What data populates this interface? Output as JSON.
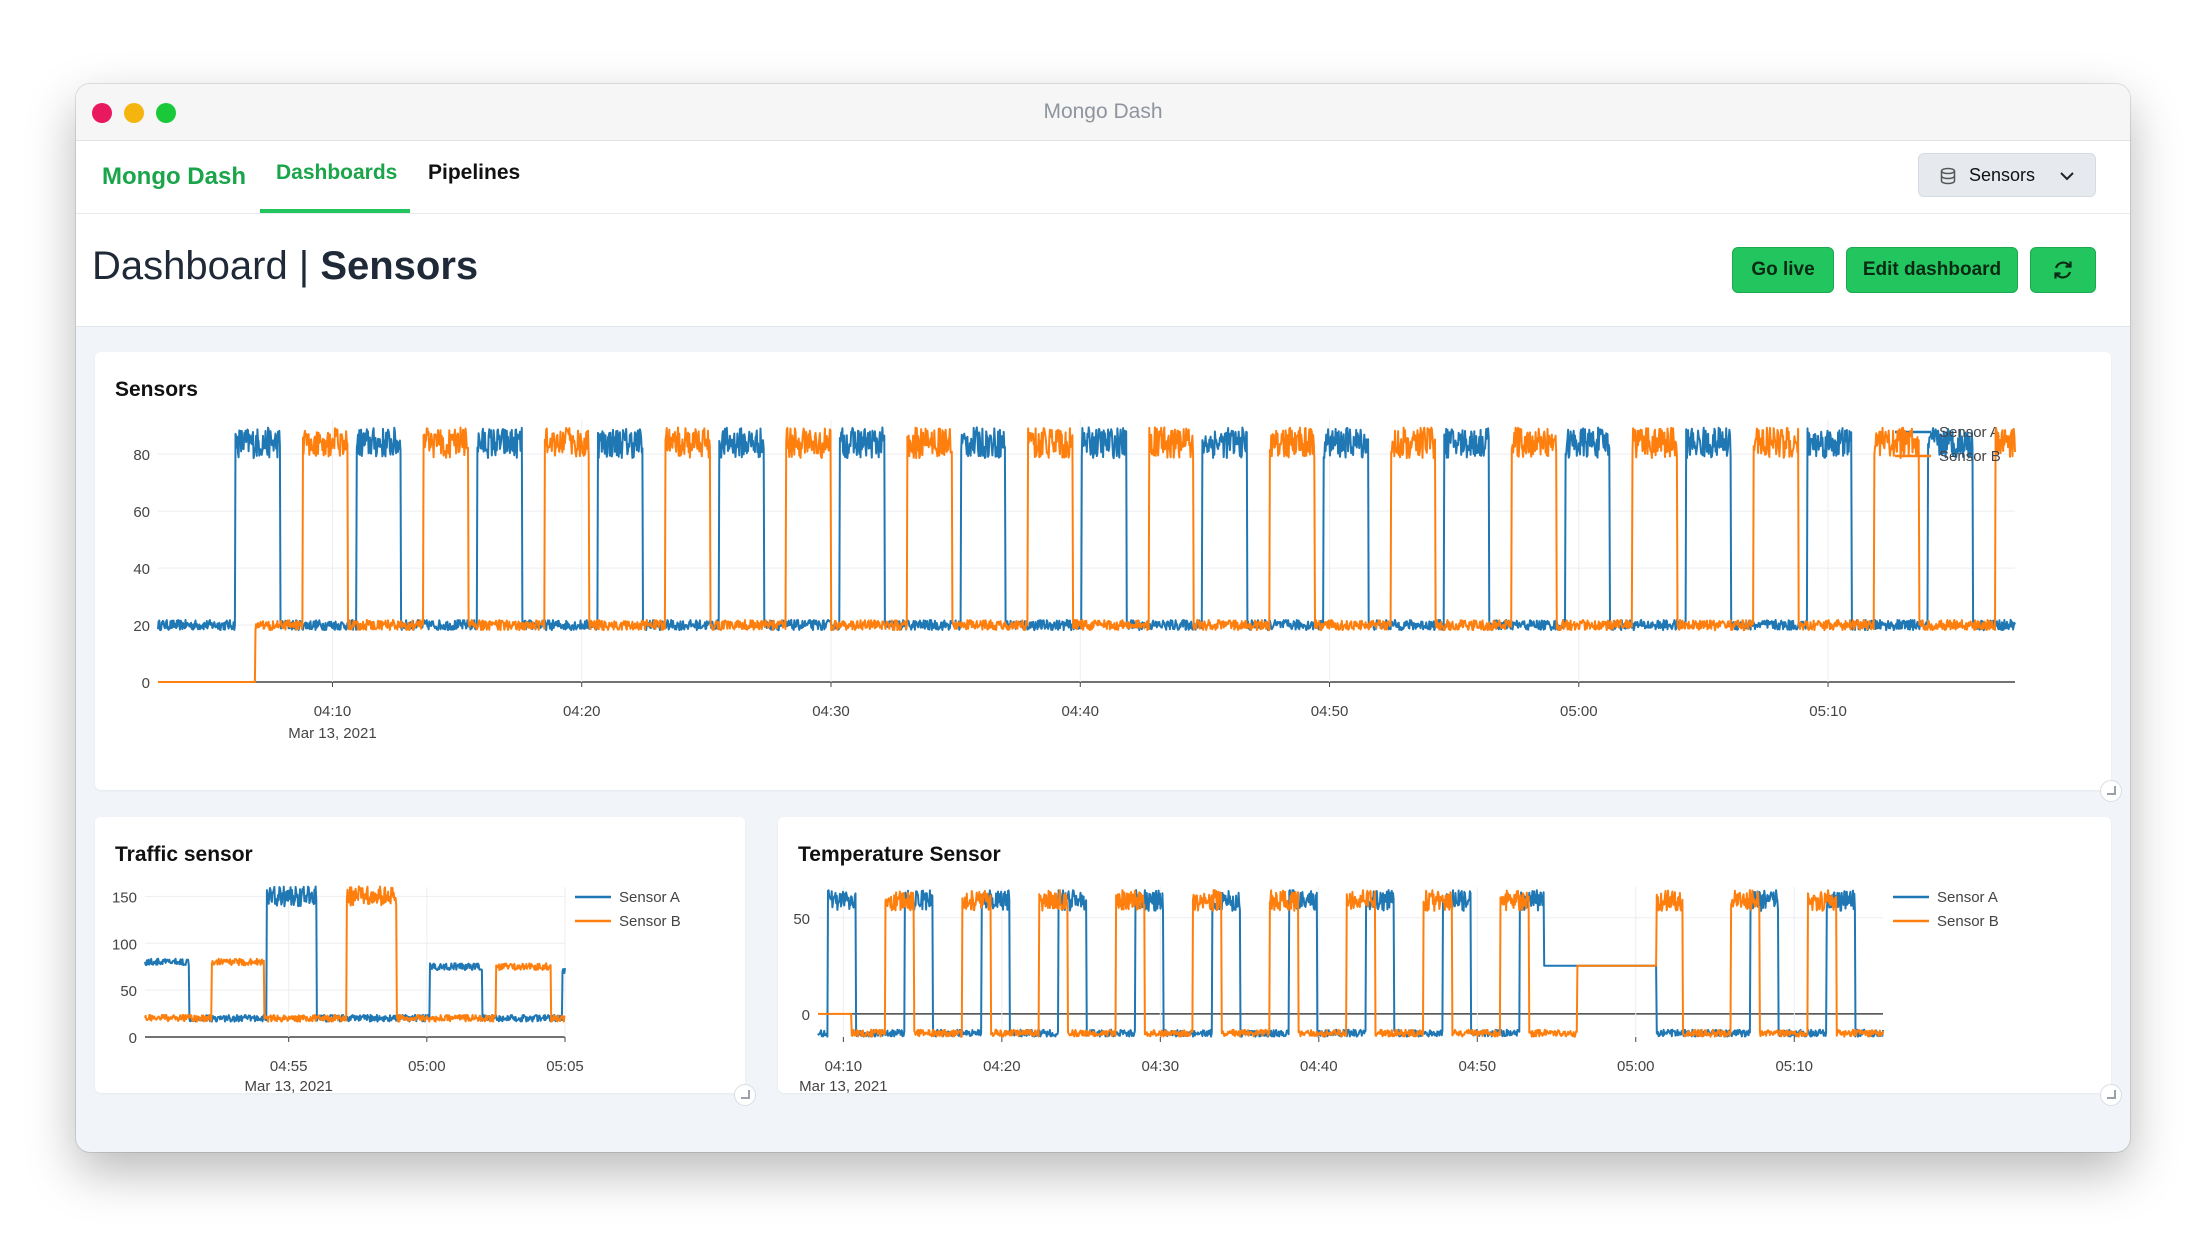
{
  "window": {
    "title": "Mongo Dash"
  },
  "nav": {
    "brand": "Mongo Dash",
    "tabs": [
      {
        "label": "Dashboards"
      },
      {
        "label": "Pipelines"
      }
    ],
    "database": {
      "label": "Sensors"
    }
  },
  "header": {
    "title_prefix": "Dashboard | ",
    "title_name": "Sensors",
    "go_live_label": "Go live",
    "edit_label": "Edit dashboard"
  },
  "colors": {
    "sensor_a": "#1f77b4",
    "sensor_b": "#ff7f0e",
    "accent": "#22c55e",
    "brand": "#1aa54b"
  },
  "icons": {
    "database": "database-icon",
    "chevron": "chevron-down-icon",
    "refresh": "refresh-icon",
    "resize": "resize-handle-icon"
  },
  "chart_data": [
    {
      "type": "line",
      "title": "Sensors",
      "x_ticks": [
        "04:10",
        "04:20",
        "04:30",
        "04:40",
        "04:50",
        "05:00",
        "05:10"
      ],
      "x_tick_minutes": [
        10,
        20,
        30,
        40,
        50,
        60,
        70
      ],
      "x_date": "Mar 13, 2021",
      "xlim_minutes": [
        3,
        77.5
      ],
      "y_ticks": [
        "0",
        "20",
        "40",
        "60",
        "80"
      ],
      "ylim": [
        0,
        92
      ],
      "legend": "right",
      "series": [
        {
          "name": "Sensor A",
          "color": "#1f77b4",
          "start_minute": 6.1,
          "pre_value": 20,
          "high": 84,
          "low": 20,
          "period_minutes": 4.85,
          "high_from": 0,
          "high_to": 1.8,
          "noise": 3
        },
        {
          "name": "Sensor B",
          "color": "#ff7f0e",
          "start_minute": 6.9,
          "pre_value": 0,
          "base": 20,
          "high": 84,
          "low": 20,
          "period_minutes": 4.85,
          "high_from": 1.9,
          "high_to": 3.7,
          "noise": 3
        }
      ]
    },
    {
      "type": "line",
      "title": "Traffic sensor",
      "x_ticks": [
        "04:55",
        "05:00",
        "05:05"
      ],
      "x_tick_minutes": [
        55,
        60,
        65
      ],
      "x_date": "Mar 13, 2021",
      "xlim_minutes": [
        49.8,
        65
      ],
      "y_ticks": [
        "0",
        "50",
        "100",
        "150"
      ],
      "ylim": [
        0,
        160
      ],
      "legend": "right",
      "series": [
        {
          "name": "Sensor A",
          "color": "#1f77b4",
          "segments": [
            [
              49.8,
              80
            ],
            [
              51.4,
              20
            ],
            [
              54.2,
              150
            ],
            [
              56.0,
              20
            ],
            [
              60.1,
              75
            ],
            [
              62.0,
              20
            ],
            [
              64.9,
              70
            ]
          ],
          "noise": 6
        },
        {
          "name": "Sensor B",
          "color": "#ff7f0e",
          "segments": [
            [
              49.8,
              20
            ],
            [
              52.2,
              80
            ],
            [
              54.1,
              20
            ],
            [
              57.1,
              150
            ],
            [
              58.9,
              20
            ],
            [
              62.5,
              75
            ],
            [
              64.5,
              20
            ]
          ],
          "noise": 6
        }
      ]
    },
    {
      "type": "line",
      "title": "Temperature Sensor",
      "x_ticks": [
        "04:10",
        "04:20",
        "04:30",
        "04:40",
        "04:50",
        "05:00",
        "05:10"
      ],
      "x_tick_minutes": [
        10,
        20,
        30,
        40,
        50,
        60,
        70
      ],
      "x_date": "Mar 13, 2021",
      "xlim_minutes": [
        8.4,
        75.6
      ],
      "y_ticks": [
        "0",
        "50"
      ],
      "ylim": [
        -12,
        66
      ],
      "legend": "right",
      "series": [
        {
          "name": "Sensor A",
          "color": "#1f77b4",
          "start_minute": 9.0,
          "pre_value": -10,
          "high": 59,
          "low": -10,
          "period_minutes": 4.85,
          "high_from": 0,
          "high_to": 1.8,
          "noise": 3,
          "hold": {
            "from": 54.2,
            "to": 61.3,
            "value": 25,
            "high_pulse_at": 65.8
          }
        },
        {
          "name": "Sensor B",
          "color": "#ff7f0e",
          "start_minute": 10.5,
          "pre_value": 0,
          "base": -10,
          "high": 59,
          "low": -10,
          "period_minutes": 4.85,
          "high_from": 2.15,
          "high_to": 3.95,
          "noise": 3,
          "hold": {
            "from": 56.3,
            "to": 61.3,
            "value": 25
          }
        }
      ]
    }
  ]
}
